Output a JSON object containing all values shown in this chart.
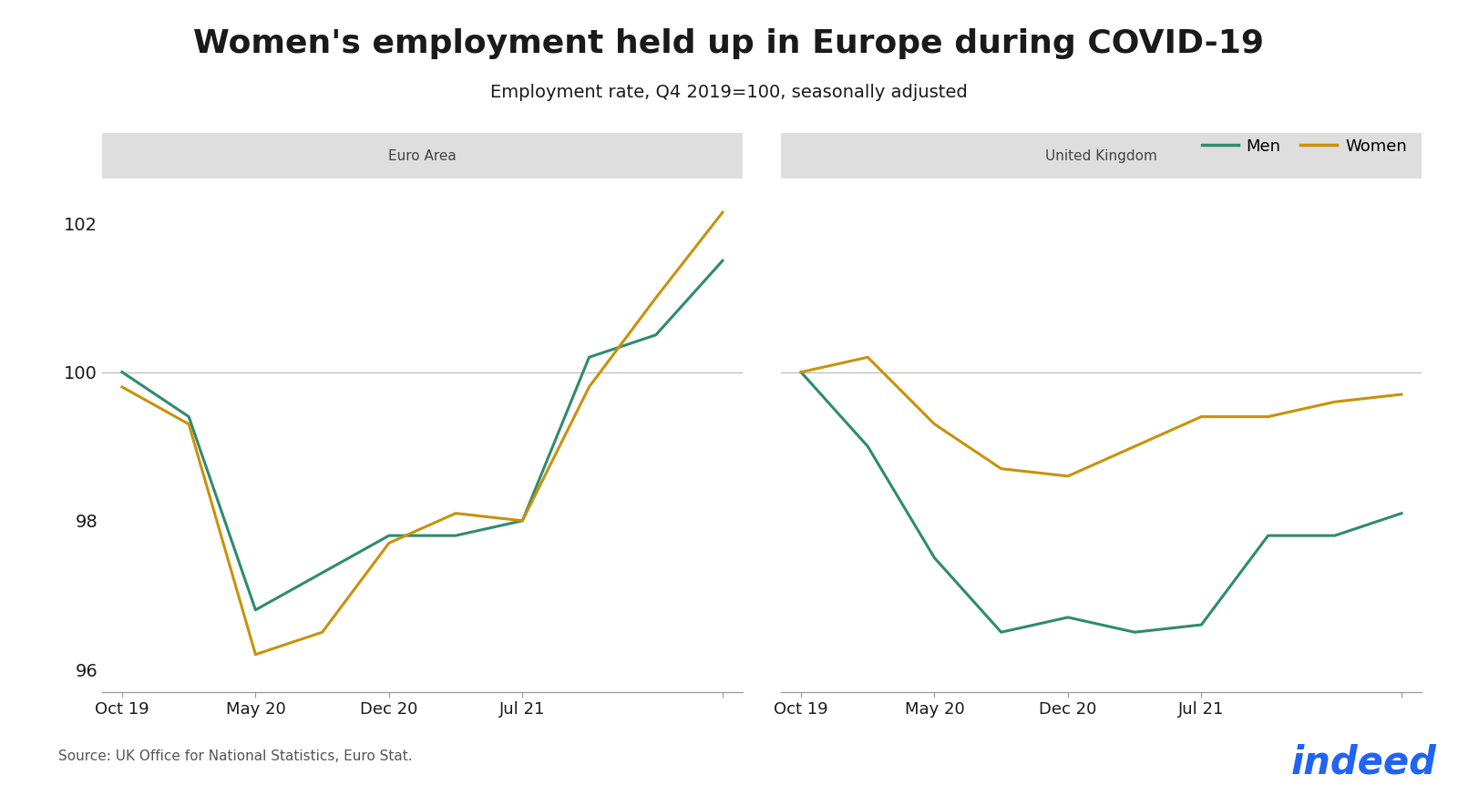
{
  "title": "Women's employment held up in Europe during COVID-19",
  "subtitle": "Employment rate, Q4 2019=100, seasonally adjusted",
  "title_fontsize": 26,
  "subtitle_fontsize": 14,
  "men_color": "#2E8B6E",
  "women_color": "#C9920A",
  "background_color": "#FFFFFF",
  "panel_header_color": "#DEDEDE",
  "source_text": "Source: UK Office for National Statistics, Euro Stat.",
  "panel1_title": "Euro Area",
  "panel2_title": "United Kingdom",
  "ylim": [
    95.7,
    102.6
  ],
  "yticks": [
    96,
    98,
    100,
    102
  ],
  "euro_men_x": [
    0,
    1,
    2,
    3,
    4,
    5,
    6,
    7,
    8,
    9
  ],
  "euro_men_y": [
    100.0,
    99.4,
    96.8,
    97.3,
    97.8,
    97.8,
    98.0,
    100.2,
    100.5,
    101.5
  ],
  "euro_women_x": [
    0,
    1,
    2,
    3,
    4,
    5,
    6,
    7,
    8,
    9
  ],
  "euro_women_y": [
    99.8,
    99.3,
    96.2,
    96.5,
    97.7,
    98.1,
    98.0,
    99.8,
    101.0,
    102.15
  ],
  "uk_men_x": [
    0,
    1,
    2,
    3,
    4,
    5,
    6,
    7,
    8,
    9
  ],
  "uk_men_y": [
    100.0,
    99.0,
    97.5,
    96.5,
    96.7,
    96.5,
    96.6,
    97.8,
    97.8,
    98.1
  ],
  "uk_women_x": [
    0,
    1,
    2,
    3,
    4,
    5,
    6,
    7,
    8,
    9
  ],
  "uk_women_y": [
    100.0,
    100.2,
    99.3,
    98.7,
    98.6,
    99.0,
    99.4,
    99.4,
    99.6,
    99.7
  ],
  "xtick_positions": [
    0,
    2,
    4,
    6,
    9
  ],
  "euro_xtick_display": [
    "Oct 19",
    "May 20",
    "Dec 20",
    "Jul 21",
    ""
  ],
  "uk_xtick_display": [
    "Oct 19",
    "May 20",
    "Dec 20",
    "Jul 21",
    ""
  ],
  "line_width": 2.2,
  "indeed_color": "#2164F3"
}
